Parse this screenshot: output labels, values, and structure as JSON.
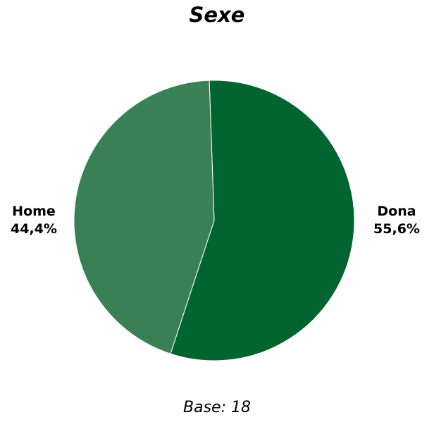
{
  "chart_data": {
    "type": "pie",
    "title": "Sexe",
    "categories": [
      "Home",
      "Dona"
    ],
    "values": [
      44.4,
      55.6
    ],
    "value_labels": [
      "44,4%",
      "55,6%"
    ],
    "colors": [
      "#3A8057",
      "#02642E"
    ],
    "note": "Base: 18"
  }
}
